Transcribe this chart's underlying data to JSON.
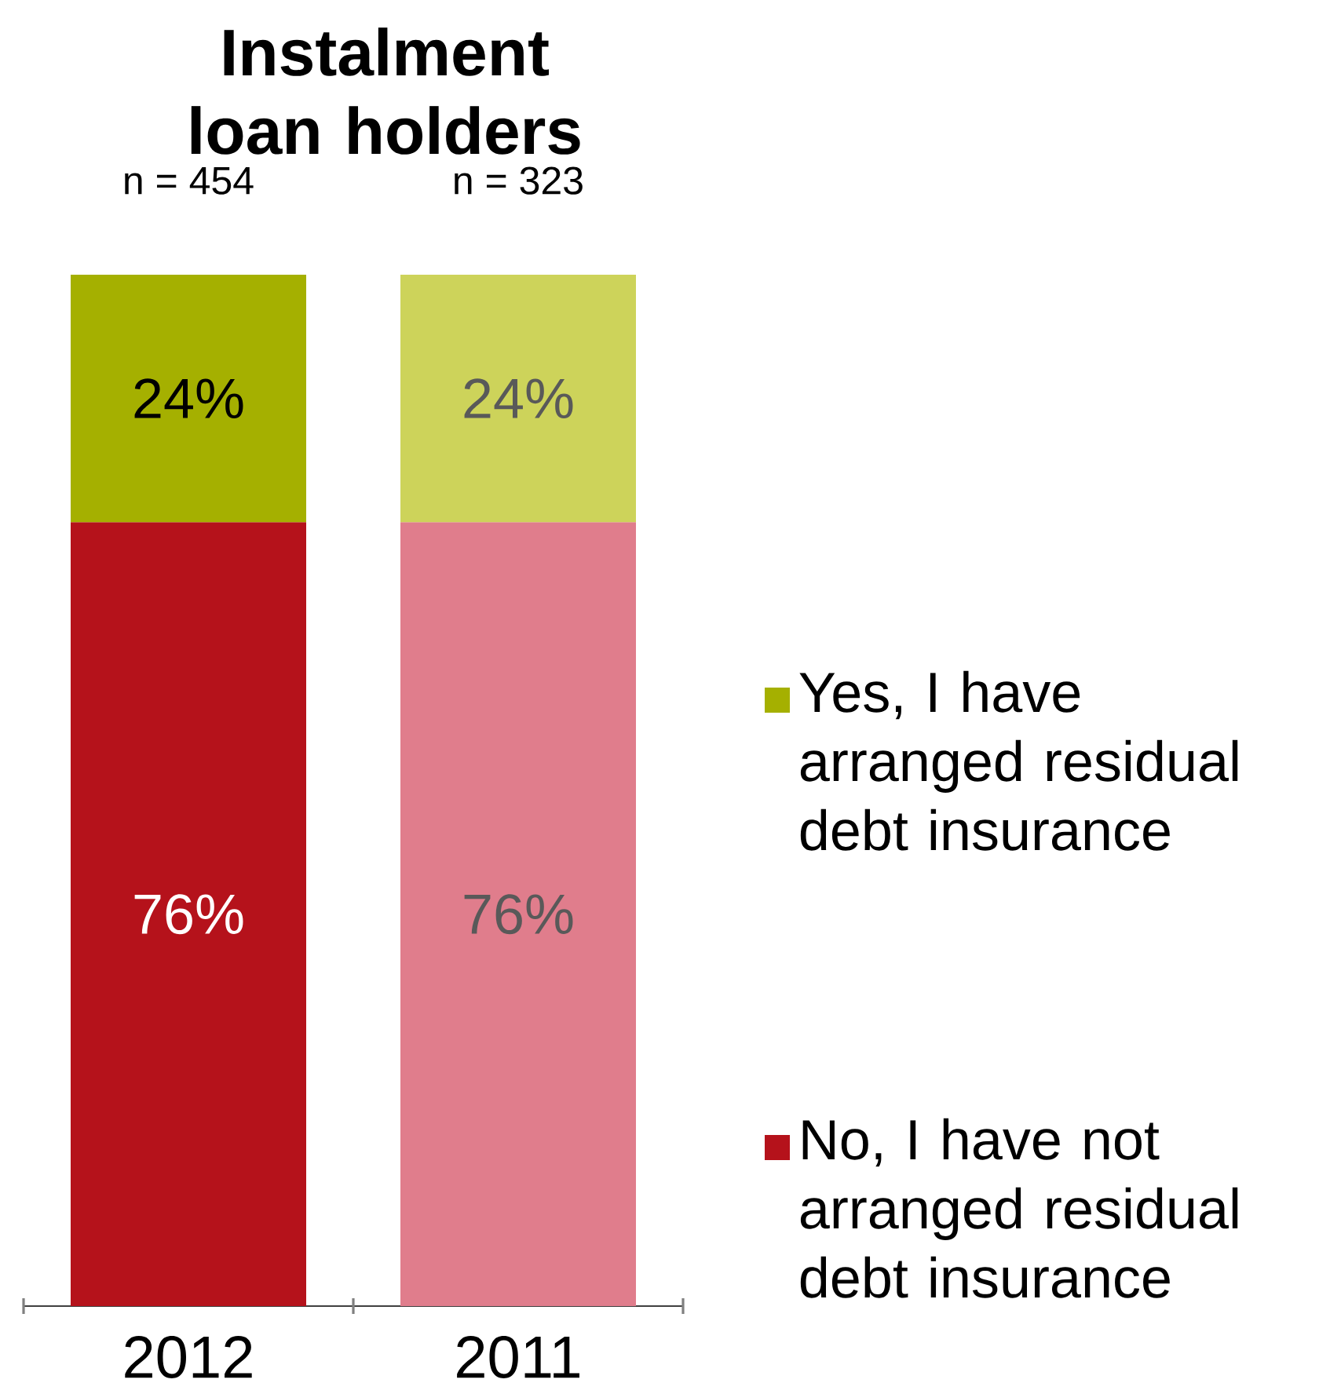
{
  "chart_data": {
    "type": "bar",
    "title": "Instalment loan holders",
    "annotations": [
      "n = 454",
      "n = 323"
    ],
    "categories": [
      "2012",
      "2011"
    ],
    "stacked": true,
    "series": [
      {
        "name": "No, I have not arranged residual debt insurance",
        "color": "#b5121b",
        "colors": [
          "#b5121b",
          "#e07d8c"
        ],
        "values": [
          76,
          76
        ],
        "value_labels": [
          "76%",
          "76%"
        ]
      },
      {
        "name": "Yes, I have arranged residual debt insurance",
        "color": "#a5b000",
        "colors": [
          "#a5b000",
          "#cdd35a"
        ],
        "values": [
          24,
          24
        ],
        "value_labels": [
          "24%",
          "24%"
        ]
      }
    ],
    "legend": "right",
    "grid": false
  }
}
